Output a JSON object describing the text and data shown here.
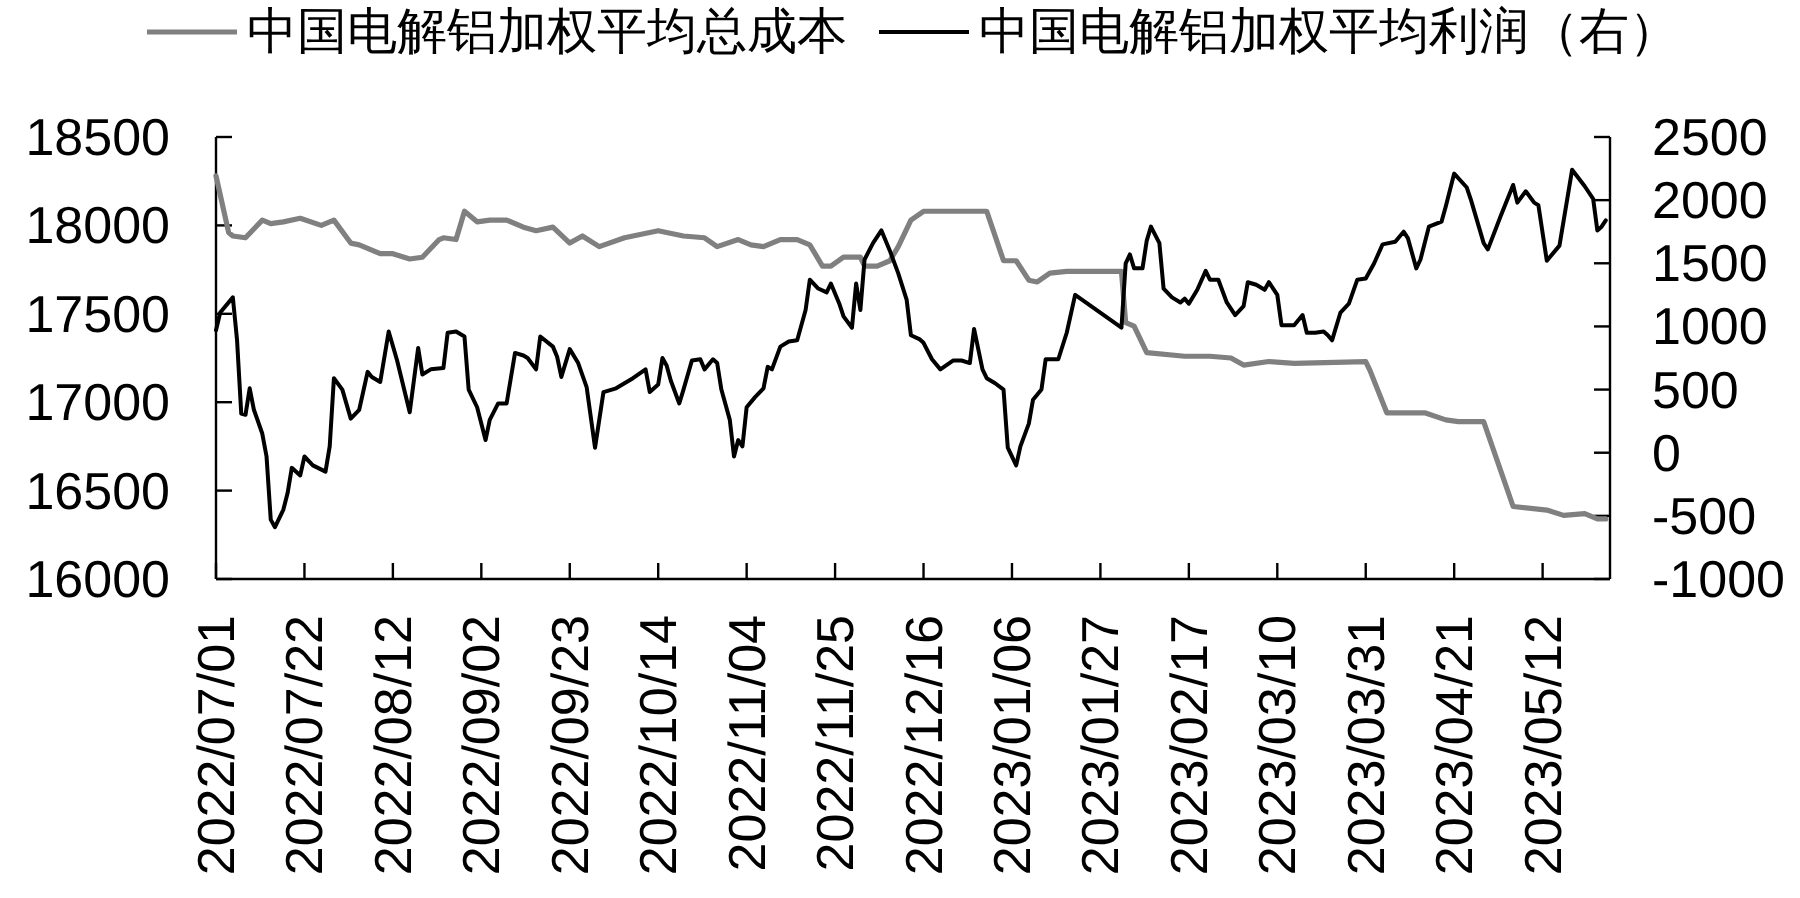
{
  "chart_data": {
    "type": "line",
    "series": [
      {
        "name": "中国电解铝加权平均总成本",
        "color": "#808080",
        "x": [
          "2022-07-01",
          "2022-07-04",
          "2022-07-05",
          "2022-07-08",
          "2022-07-12",
          "2022-07-14",
          "2022-07-17",
          "2022-07-21",
          "2022-07-26",
          "2022-07-29",
          "2022-08-02",
          "2022-08-04",
          "2022-08-09",
          "2022-08-12",
          "2022-08-16",
          "2022-08-19",
          "2022-08-23",
          "2022-08-24",
          "2022-08-27",
          "2022-08-29",
          "2022-09-01",
          "2022-09-04",
          "2022-09-08",
          "2022-09-12",
          "2022-09-15",
          "2022-09-19",
          "2022-09-23",
          "2022-09-26",
          "2022-09-30",
          "2022-10-06",
          "2022-10-14",
          "2022-10-20",
          "2022-10-25",
          "2022-10-28",
          "2022-11-02",
          "2022-11-05",
          "2022-11-08",
          "2022-11-12",
          "2022-11-16",
          "2022-11-19",
          "2022-11-22",
          "2022-11-24",
          "2022-11-27",
          "2022-12-01",
          "2022-12-02",
          "2022-12-05",
          "2022-12-08",
          "2022-12-10",
          "2022-12-13",
          "2022-12-16",
          "2022-12-31",
          "2023-01-04",
          "2023-01-07",
          "2023-01-10",
          "2023-01-12",
          "2023-01-15",
          "2023-01-19",
          "2023-02-01",
          "2023-02-02",
          "2023-02-04",
          "2023-02-07",
          "2023-02-16",
          "2023-02-22",
          "2023-02-27",
          "2023-03-02",
          "2023-03-08",
          "2023-03-14",
          "2023-03-31",
          "2023-04-01",
          "2023-04-05",
          "2023-04-14",
          "2023-04-19",
          "2023-04-22",
          "2023-04-28",
          "2023-05-05",
          "2023-05-13",
          "2023-05-17",
          "2023-05-22",
          "2023-05-25",
          "2023-05-27"
        ],
        "values": [
          18280,
          17960,
          17940,
          17930,
          18030,
          18010,
          18020,
          18040,
          18000,
          18030,
          17900,
          17890,
          17840,
          17840,
          17810,
          17820,
          17920,
          17930,
          17920,
          18080,
          18020,
          18030,
          18030,
          17990,
          17970,
          17990,
          17900,
          17940,
          17880,
          17930,
          17970,
          17940,
          17930,
          17880,
          17920,
          17890,
          17880,
          17920,
          17920,
          17890,
          17770,
          17770,
          17820,
          17820,
          17770,
          17770,
          17800,
          17880,
          18030,
          18080,
          18080,
          17800,
          17800,
          17690,
          17680,
          17730,
          17740,
          17740,
          17450,
          17430,
          17280,
          17260,
          17260,
          17250,
          17210,
          17230,
          17220,
          17230,
          17180,
          16940,
          16940,
          16900,
          16890,
          16890,
          16410,
          16390,
          16360,
          16370,
          16340,
          16340
        ]
      },
      {
        "name": "中国电解铝加权平均利润（右）",
        "color": "#000000",
        "axis": "y2",
        "x": [
          "2022-07-01",
          "2022-07-02",
          "2022-07-05",
          "2022-07-06",
          "2022-07-07",
          "2022-07-08",
          "2022-07-09",
          "2022-07-10",
          "2022-07-12",
          "2022-07-13",
          "2022-07-14",
          "2022-07-15",
          "2022-07-17",
          "2022-07-18",
          "2022-07-19",
          "2022-07-21",
          "2022-07-22",
          "2022-07-24",
          "2022-07-27",
          "2022-07-28",
          "2022-07-29",
          "2022-07-31",
          "2022-08-02",
          "2022-08-04",
          "2022-08-06",
          "2022-08-07",
          "2022-08-09",
          "2022-08-11",
          "2022-08-13",
          "2022-08-16",
          "2022-08-18",
          "2022-08-19",
          "2022-08-21",
          "2022-08-24",
          "2022-08-25",
          "2022-08-27",
          "2022-08-29",
          "2022-08-30",
          "2022-09-01",
          "2022-09-03",
          "2022-09-04",
          "2022-09-06",
          "2022-09-08",
          "2022-09-10",
          "2022-09-12",
          "2022-09-13",
          "2022-09-15",
          "2022-09-16",
          "2022-09-19",
          "2022-09-20",
          "2022-09-21",
          "2022-09-23",
          "2022-09-25",
          "2022-09-27",
          "2022-09-29",
          "2022-10-01",
          "2022-10-04",
          "2022-10-08",
          "2022-10-11",
          "2022-10-12",
          "2022-10-14",
          "2022-10-15",
          "2022-10-16",
          "2022-10-17",
          "2022-10-19",
          "2022-10-20",
          "2022-10-22",
          "2022-10-24",
          "2022-10-25",
          "2022-10-27",
          "2022-10-28",
          "2022-10-29",
          "2022-10-31",
          "2022-11-01",
          "2022-11-02",
          "2022-11-03",
          "2022-11-04",
          "2022-11-06",
          "2022-11-08",
          "2022-11-09",
          "2022-11-10",
          "2022-11-12",
          "2022-11-14",
          "2022-11-16",
          "2022-11-18",
          "2022-11-19",
          "2022-11-21",
          "2022-11-23",
          "2022-11-24",
          "2022-11-26",
          "2022-11-27",
          "2022-11-29",
          "2022-11-30",
          "2022-12-01",
          "2022-12-02",
          "2022-12-04",
          "2022-12-06",
          "2022-12-08",
          "2022-12-10",
          "2022-12-12",
          "2022-12-13",
          "2022-12-15",
          "2022-12-16",
          "2022-12-18",
          "2022-12-20",
          "2022-12-23",
          "2022-12-25",
          "2022-12-27",
          "2022-12-28",
          "2022-12-30",
          "2022-12-31",
          "2023-01-02",
          "2023-01-04",
          "2023-01-05",
          "2023-01-07",
          "2023-01-08",
          "2023-01-10",
          "2023-01-11",
          "2023-01-13",
          "2023-01-14",
          "2023-01-17",
          "2023-01-19",
          "2023-01-21",
          "2023-02-01",
          "2023-02-02",
          "2023-02-03",
          "2023-02-04",
          "2023-02-06",
          "2023-02-07",
          "2023-02-08",
          "2023-02-10",
          "2023-02-11",
          "2023-02-13",
          "2023-02-15",
          "2023-02-16",
          "2023-02-17",
          "2023-02-19",
          "2023-02-21",
          "2023-02-22",
          "2023-02-24",
          "2023-02-26",
          "2023-02-28",
          "2023-03-02",
          "2023-03-03",
          "2023-03-05",
          "2023-03-07",
          "2023-03-08",
          "2023-03-10",
          "2023-03-11",
          "2023-03-14",
          "2023-03-16",
          "2023-03-17",
          "2023-03-19",
          "2023-03-21",
          "2023-03-22",
          "2023-03-23",
          "2023-03-25",
          "2023-03-27",
          "2023-03-29",
          "2023-03-31",
          "2023-04-02",
          "2023-04-04",
          "2023-04-07",
          "2023-04-09",
          "2023-04-10",
          "2023-04-12",
          "2023-04-13",
          "2023-04-15",
          "2023-04-18",
          "2023-04-19",
          "2023-04-21",
          "2023-04-24",
          "2023-04-25",
          "2023-04-28",
          "2023-04-29",
          "2023-05-02",
          "2023-05-05",
          "2023-05-06",
          "2023-05-08",
          "2023-05-10",
          "2023-05-11",
          "2023-05-13",
          "2023-05-16",
          "2023-05-17",
          "2023-05-19",
          "2023-05-22",
          "2023-05-24",
          "2023-05-25",
          "2023-05-26",
          "2023-05-27"
        ],
        "values": [
          970,
          1110,
          1230,
          890,
          310,
          300,
          510,
          340,
          150,
          -30,
          -530,
          -590,
          -450,
          -320,
          -120,
          -180,
          -30,
          -100,
          -150,
          50,
          590,
          500,
          270,
          340,
          640,
          600,
          560,
          960,
          730,
          320,
          830,
          620,
          660,
          670,
          950,
          960,
          920,
          500,
          360,
          100,
          260,
          390,
          390,
          790,
          770,
          750,
          660,
          920,
          840,
          760,
          600,
          820,
          710,
          520,
          40,
          480,
          510,
          590,
          660,
          480,
          540,
          750,
          690,
          570,
          390,
          500,
          730,
          740,
          660,
          740,
          710,
          500,
          260,
          -30,
          100,
          50,
          360,
          440,
          510,
          680,
          660,
          840,
          880,
          890,
          1130,
          1370,
          1300,
          1270,
          1340,
          1180,
          1080,
          990,
          1340,
          1130,
          1530,
          1660,
          1760,
          1600,
          1420,
          1210,
          930,
          900,
          870,
          740,
          660,
          730,
          730,
          710,
          980,
          660,
          590,
          550,
          500,
          40,
          -100,
          50,
          230,
          420,
          500,
          740,
          740,
          950,
          1250,
          990,
          1500,
          1570,
          1460,
          1460,
          1680,
          1790,
          1660,
          1300,
          1230,
          1190,
          1220,
          1180,
          1290,
          1440,
          1370,
          1370,
          1190,
          1090,
          1160,
          1350,
          1330,
          1290,
          1350,
          1250,
          1010,
          1010,
          1090,
          950,
          950,
          960,
          930,
          890,
          1110,
          1180,
          1370,
          1380,
          1500,
          1650,
          1670,
          1750,
          1700,
          1460,
          1530,
          1790,
          1830,
          1950,
          2210,
          2100,
          2000,
          1660,
          1610,
          1870,
          2120,
          1980,
          2070,
          1980,
          1960,
          1520,
          1640,
          1840,
          2240,
          2110,
          2010,
          1760,
          1790,
          1840
        ]
      }
    ],
    "xlim": [
      "2022-07-01",
      "2023-05-28"
    ],
    "xticks": [
      {
        "value": "2022-07-01",
        "label": "2022/07/01"
      },
      {
        "value": "2022-07-22",
        "label": "2022/07/22"
      },
      {
        "value": "2022-08-12",
        "label": "2022/08/12"
      },
      {
        "value": "2022-09-02",
        "label": "2022/09/02"
      },
      {
        "value": "2022-09-23",
        "label": "2022/09/23"
      },
      {
        "value": "2022-10-14",
        "label": "2022/10/14"
      },
      {
        "value": "2022-11-04",
        "label": "2022/11/04"
      },
      {
        "value": "2022-11-25",
        "label": "2022/11/25"
      },
      {
        "value": "2022-12-16",
        "label": "2022/12/16"
      },
      {
        "value": "2023-01-06",
        "label": "2023/01/06"
      },
      {
        "value": "2023-01-27",
        "label": "2023/01/27"
      },
      {
        "value": "2023-02-17",
        "label": "2023/02/17"
      },
      {
        "value": "2023-03-10",
        "label": "2023/03/10"
      },
      {
        "value": "2023-03-31",
        "label": "2023/03/31"
      },
      {
        "value": "2023-04-21",
        "label": "2023/04/21"
      },
      {
        "value": "2023-05-12",
        "label": "2023/05/12"
      }
    ],
    "ylim": [
      16000,
      18500
    ],
    "yticks": [
      16000,
      16500,
      17000,
      17500,
      18000,
      18500
    ],
    "y2lim": [
      -1000,
      2500
    ],
    "y2ticks": [
      -1000,
      -500,
      0,
      500,
      1000,
      1500,
      2000,
      2500
    ],
    "legend": "top"
  }
}
